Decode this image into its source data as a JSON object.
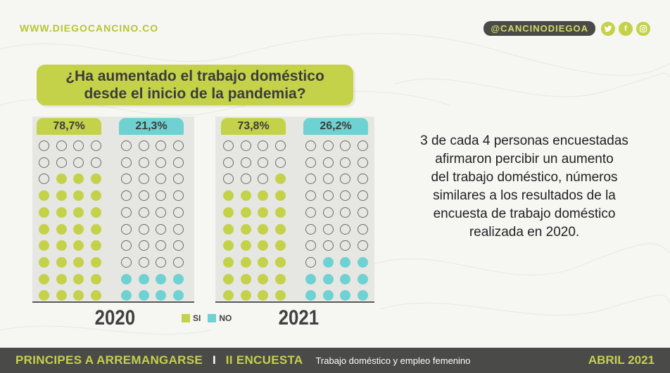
{
  "header": {
    "website": "WWW.DIEGOCANCINO.CO",
    "handle": "@CANCINODIEGOA",
    "icons": [
      "twitter-icon",
      "facebook-icon",
      "instagram-icon"
    ]
  },
  "question": {
    "line1": "¿Ha aumentado el trabajo doméstico",
    "line2": "desde el inicio de la pandemia?"
  },
  "colors": {
    "si": "#c4d24a",
    "no": "#6fd2d2",
    "empty": "#6b6b6b"
  },
  "chart_data": {
    "type": "waffle",
    "dots_per_group": 40,
    "columns": 4,
    "years": [
      {
        "year": "2020",
        "si_label": "78,7%",
        "no_label": "21,3%",
        "si": 78.7,
        "no": 21.3,
        "si_dots": 31,
        "no_dots": 8
      },
      {
        "year": "2021",
        "si_label": "73,8%",
        "no_label": "26,2%",
        "si": 73.8,
        "no": 26.2,
        "si_dots": 29,
        "no_dots": 11
      }
    ],
    "legend": {
      "si": "SI",
      "no": "NO"
    }
  },
  "summary": {
    "lines": [
      "3 de cada 4 personas encuestadas",
      "afirmaron percibir un aumento",
      "del trabajo doméstico, números",
      "similares a los resultados de la",
      "encuesta de trabajo doméstico",
      "realizada en 2020."
    ]
  },
  "footer": {
    "title": "PRINCIPES A ARREMANGARSE",
    "separator": "I",
    "survey": "II ENCUESTA",
    "subtitle": "Trabajo doméstico y empleo femenino",
    "date": "ABRIL 2021"
  }
}
